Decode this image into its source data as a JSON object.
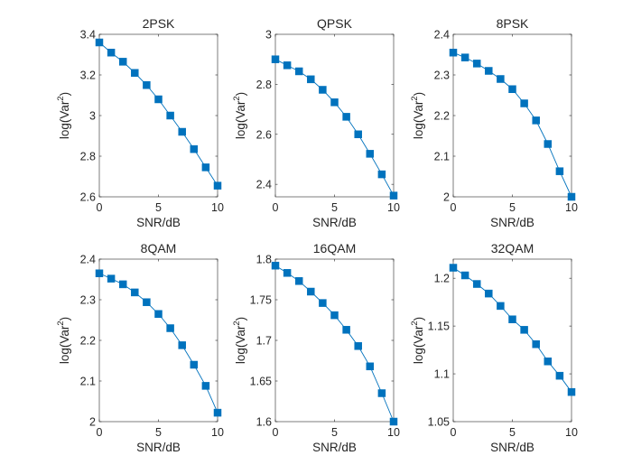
{
  "chart_data": [
    {
      "type": "line",
      "title": "2PSK",
      "xlabel": "SNR/dB",
      "ylabel_base": "log(Var",
      "ylabel_sup": "2",
      "ylabel_close": ")",
      "xlim": [
        0,
        10
      ],
      "ylim": [
        2.6,
        3.4
      ],
      "xticks": [
        "0",
        "5",
        "10"
      ],
      "xtick_values": [
        0,
        5,
        10
      ],
      "yticks": [
        "2.6",
        "2.8",
        "3",
        "3.2",
        "3.4"
      ],
      "ytick_values": [
        2.6,
        2.8,
        3.0,
        3.2,
        3.4
      ],
      "grid": false,
      "marker": "square",
      "color": "#0072bd",
      "x": [
        0,
        1,
        2,
        3,
        4,
        5,
        6,
        7,
        8,
        9,
        10
      ],
      "y": [
        3.36,
        3.31,
        3.265,
        3.21,
        3.15,
        3.08,
        3.0,
        2.92,
        2.835,
        2.745,
        2.655
      ]
    },
    {
      "type": "line",
      "title": "QPSK",
      "xlabel": "SNR/dB",
      "ylabel_base": "log(Var",
      "ylabel_sup": "2",
      "ylabel_close": ")",
      "xlim": [
        0,
        10
      ],
      "ylim": [
        2.35,
        3.0
      ],
      "xticks": [
        "0",
        "5",
        "10"
      ],
      "xtick_values": [
        0,
        5,
        10
      ],
      "yticks": [
        "2.4",
        "2.6",
        "2.8",
        "3"
      ],
      "ytick_values": [
        2.4,
        2.6,
        2.8,
        3.0
      ],
      "grid": false,
      "marker": "square",
      "color": "#0072bd",
      "x": [
        0,
        1,
        2,
        3,
        4,
        5,
        6,
        7,
        8,
        9,
        10
      ],
      "y": [
        2.9,
        2.876,
        2.852,
        2.82,
        2.778,
        2.728,
        2.67,
        2.6,
        2.522,
        2.44,
        2.355
      ]
    },
    {
      "type": "line",
      "title": "8PSK",
      "xlabel": "SNR/dB",
      "ylabel_base": "log(Var",
      "ylabel_sup": "2",
      "ylabel_close": ")",
      "xlim": [
        0,
        10
      ],
      "ylim": [
        2.0,
        2.4
      ],
      "xticks": [
        "0",
        "5",
        "10"
      ],
      "xtick_values": [
        0,
        5,
        10
      ],
      "yticks": [
        "2",
        "2.1",
        "2.2",
        "2.3",
        "2.4"
      ],
      "ytick_values": [
        2.0,
        2.1,
        2.2,
        2.3,
        2.4
      ],
      "grid": false,
      "marker": "square",
      "color": "#0072bd",
      "x": [
        0,
        1,
        2,
        3,
        4,
        5,
        6,
        7,
        8,
        9,
        10
      ],
      "y": [
        2.355,
        2.343,
        2.328,
        2.31,
        2.29,
        2.265,
        2.23,
        2.188,
        2.13,
        2.063,
        2.0
      ]
    },
    {
      "type": "line",
      "title": "8QAM",
      "xlabel": "SNR/dB",
      "ylabel_base": "log(Var",
      "ylabel_sup": "2",
      "ylabel_close": ")",
      "xlim": [
        0,
        10
      ],
      "ylim": [
        2.0,
        2.4
      ],
      "xticks": [
        "0",
        "5",
        "10"
      ],
      "xtick_values": [
        0,
        5,
        10
      ],
      "yticks": [
        "2",
        "2.1",
        "2.2",
        "2.3",
        "2.4"
      ],
      "ytick_values": [
        2.0,
        2.1,
        2.2,
        2.3,
        2.4
      ],
      "grid": false,
      "marker": "square",
      "color": "#0072bd",
      "x": [
        0,
        1,
        2,
        3,
        4,
        5,
        6,
        7,
        8,
        9,
        10
      ],
      "y": [
        2.365,
        2.352,
        2.338,
        2.318,
        2.294,
        2.265,
        2.23,
        2.188,
        2.14,
        2.088,
        2.022
      ]
    },
    {
      "type": "line",
      "title": "16QAM",
      "xlabel": "SNR/dB",
      "ylabel_base": "log(Var",
      "ylabel_sup": "2",
      "ylabel_close": ")",
      "xlim": [
        0,
        10
      ],
      "ylim": [
        1.6,
        1.8
      ],
      "xticks": [
        "0",
        "5",
        "10"
      ],
      "xtick_values": [
        0,
        5,
        10
      ],
      "yticks": [
        "1.6",
        "1.65",
        "1.7",
        "1.75",
        "1.8"
      ],
      "ytick_values": [
        1.6,
        1.65,
        1.7,
        1.75,
        1.8
      ],
      "grid": false,
      "marker": "square",
      "color": "#0072bd",
      "x": [
        0,
        1,
        2,
        3,
        4,
        5,
        6,
        7,
        8,
        9,
        10
      ],
      "y": [
        1.792,
        1.783,
        1.773,
        1.76,
        1.746,
        1.731,
        1.713,
        1.693,
        1.668,
        1.635,
        1.6
      ]
    },
    {
      "type": "line",
      "title": "32QAM",
      "xlabel": "SNR/dB",
      "ylabel_base": "log(Var",
      "ylabel_sup": "2",
      "ylabel_close": ")",
      "xlim": [
        0,
        10
      ],
      "ylim": [
        1.05,
        1.22
      ],
      "xticks": [
        "0",
        "5",
        "10"
      ],
      "xtick_values": [
        0,
        5,
        10
      ],
      "yticks": [
        "1.05",
        "1.1",
        "1.15",
        "1.2"
      ],
      "ytick_values": [
        1.05,
        1.1,
        1.15,
        1.2
      ],
      "grid": false,
      "marker": "square",
      "color": "#0072bd",
      "x": [
        0,
        1,
        2,
        3,
        4,
        5,
        6,
        7,
        8,
        9,
        10
      ],
      "y": [
        1.211,
        1.203,
        1.194,
        1.184,
        1.171,
        1.157,
        1.146,
        1.131,
        1.113,
        1.098,
        1.081
      ]
    }
  ]
}
